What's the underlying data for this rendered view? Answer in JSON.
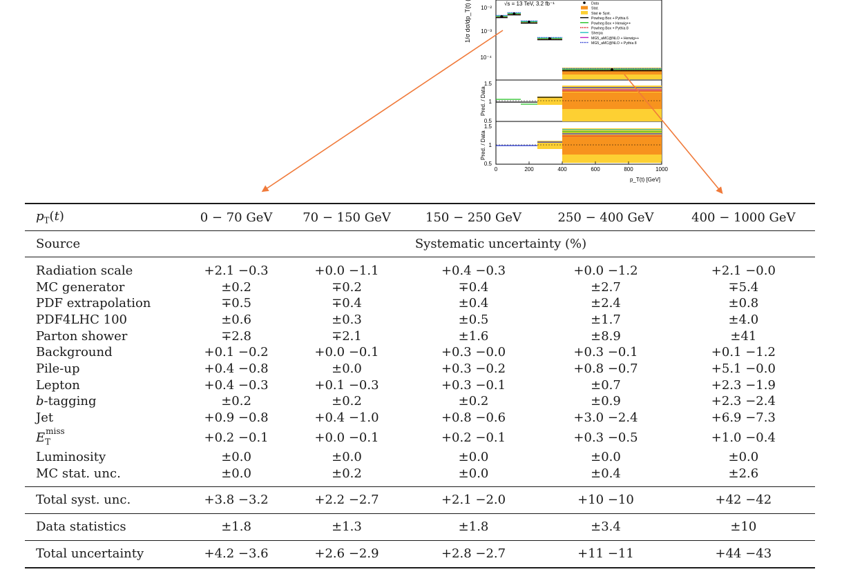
{
  "plot": {
    "energy_label": "√s = 13 TeV, 3.2 fb⁻¹",
    "y_axis_top": "1/σ dσ/dp_T(t) (",
    "y_ticks_main": [
      "10⁻²",
      "10⁻³",
      "10⁻⁴"
    ],
    "y_label_ratio1": "Pred. / Data",
    "y_ticks_ratio1": [
      "1.5",
      "1",
      "0.5"
    ],
    "y_label_ratio2": "Pred. / Data",
    "y_ticks_ratio2": [
      "1.5",
      "1",
      "0.5"
    ],
    "x_ticks": [
      "0",
      "200",
      "400",
      "600",
      "800",
      "1000"
    ],
    "x_label": "p_T(t) [GeV]",
    "legend": [
      {
        "label": "Data",
        "color": "#000000",
        "style": "dot"
      },
      {
        "label": "Stat.",
        "color": "#f7931e",
        "style": "box"
      },
      {
        "label": "Stat ⊕ Syst.",
        "color": "#fdd033",
        "style": "box"
      },
      {
        "label": "Powheg Box + Pythia 6",
        "color": "#000000",
        "style": "line"
      },
      {
        "label": "Powheg Box + Herwig++",
        "color": "#22c022",
        "style": "line"
      },
      {
        "label": "Powheg Box + Pythia 8",
        "color": "#e02020",
        "style": "dotted"
      },
      {
        "label": "Sherpa",
        "color": "#22c0c0",
        "style": "line"
      },
      {
        "label": "MG5_aMC@NLO + Herwig++",
        "color": "#c020c0",
        "style": "line"
      },
      {
        "label": "MG5_aMC@NLO + Pythia 8",
        "color": "#2030d0",
        "style": "dotted"
      }
    ]
  },
  "table": {
    "header": {
      "first": "pT(t)",
      "bins": [
        "0 − 70 GeV",
        "70 − 150 GeV",
        "150 − 250 GeV",
        "250 − 400 GeV",
        "400 − 1000 GeV"
      ]
    },
    "subheader": {
      "source": "Source",
      "span": "Systematic uncertainty (%)"
    },
    "rows": [
      {
        "source": "Radiation scale",
        "values": [
          "+2.1 −0.3",
          "+0.0 −1.1",
          "+0.4 −0.3",
          "+0.0 −1.2",
          "+2.1 −0.0"
        ]
      },
      {
        "source": "MC generator",
        "values": [
          "±0.2",
          "∓0.2",
          "∓0.4",
          "±2.7",
          "∓5.4"
        ]
      },
      {
        "source": "PDF extrapolation",
        "values": [
          "∓0.5",
          "∓0.4",
          "±0.4",
          "±2.4",
          "±0.8"
        ]
      },
      {
        "source": "PDF4LHC 100",
        "values": [
          "±0.6",
          "±0.3",
          "±0.5",
          "±1.7",
          "±4.0"
        ]
      },
      {
        "source": "Parton shower",
        "values": [
          "∓2.8",
          "∓2.1",
          "±1.6",
          "±8.9",
          "±41"
        ]
      },
      {
        "source": "Background",
        "values": [
          "+0.1 −0.2",
          "+0.0 −0.1",
          "+0.3 −0.0",
          "+0.3 −0.1",
          "+0.1 −1.2"
        ]
      },
      {
        "source": "Pile-up",
        "values": [
          "+0.4 −0.8",
          "±0.0",
          "+0.3 −0.2",
          "+0.8 −0.7",
          "+5.1 −0.0"
        ]
      },
      {
        "source": "Lepton",
        "values": [
          "+0.4 −0.3",
          "+0.1 −0.3",
          "+0.3 −0.1",
          "±0.7",
          "+2.3 −1.9"
        ]
      },
      {
        "source": "b-tagging",
        "values": [
          "±0.2",
          "±0.2",
          "±0.2",
          "±0.9",
          "+2.3 −2.4"
        ]
      },
      {
        "source": "Jet",
        "values": [
          "+0.9 −0.8",
          "+0.4 −1.0",
          "+0.8 −0.6",
          "+3.0 −2.4",
          "+6.9 −7.3"
        ]
      },
      {
        "source": "ETmiss",
        "values": [
          "+0.2 −0.1",
          "+0.0 −0.1",
          "+0.2 −0.1",
          "+0.3 −0.5",
          "+1.0 −0.4"
        ]
      },
      {
        "source": "Luminosity",
        "values": [
          "±0.0",
          "±0.0",
          "±0.0",
          "±0.0",
          "±0.0"
        ]
      },
      {
        "source": "MC stat. unc.",
        "values": [
          "±0.0",
          "±0.2",
          "±0.0",
          "±0.4",
          "±2.6"
        ]
      }
    ],
    "summary": [
      {
        "source": "Total syst. unc.",
        "values": [
          "+3.8 −3.2",
          "+2.2 −2.7",
          "+2.1 −2.0",
          "+10 −10",
          "+42 −42"
        ]
      },
      {
        "source": "Data statistics",
        "values": [
          "±1.8",
          "±1.3",
          "±1.8",
          "±3.4",
          "±10"
        ]
      },
      {
        "source": "Total uncertainty",
        "values": [
          "+4.2 −3.6",
          "+2.6 −2.9",
          "+2.8 −2.7",
          "+11 −11",
          "+44 −43"
        ]
      }
    ]
  },
  "arrow_color": "#f07a3a"
}
